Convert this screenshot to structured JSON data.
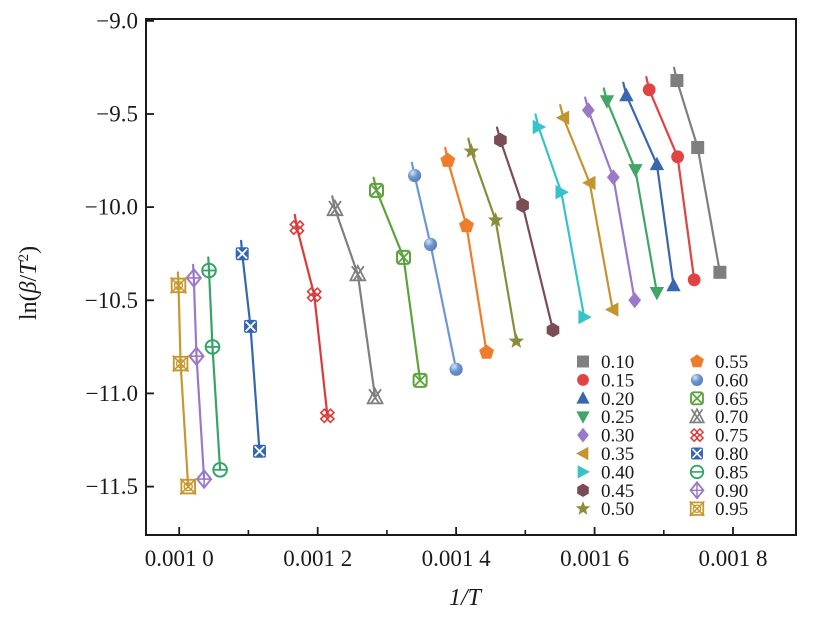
{
  "chart_data": {
    "type": "scatter",
    "title": "",
    "xlabel": "1/T",
    "ylabel": "ln(β/T²)",
    "xlim": [
      0.000952,
      0.001891
    ],
    "ylim": [
      -11.76,
      -8.99
    ],
    "grid": false,
    "legend_position": "lower right",
    "legend_columns": 2,
    "x_ticks": {
      "major": [
        0.001,
        0.0012,
        0.0014,
        0.0016,
        0.0018
      ],
      "minor": [
        0.0011,
        0.0013,
        0.0015,
        0.0017
      ],
      "labels": [
        "0.001 0",
        "0.001 2",
        "0.001 4",
        "0.001 6",
        "0.001 8"
      ]
    },
    "y_ticks": {
      "major": [
        -9.0,
        -9.5,
        -10.0,
        -10.5,
        -11.0,
        -11.5
      ],
      "labels": [
        "−9.0",
        "−9.5",
        "−10.0",
        "−10.5",
        "−11.0",
        "−11.5"
      ]
    },
    "series": [
      {
        "label": "0.10",
        "marker": "square",
        "color": "#7f7f7f",
        "points": [
          [
            0.001719,
            -9.32
          ],
          [
            0.001749,
            -9.68
          ],
          [
            0.001781,
            -10.35
          ]
        ]
      },
      {
        "label": "0.15",
        "marker": "circle",
        "color": "#df4343",
        "points": [
          [
            0.001679,
            -9.37
          ],
          [
            0.00172,
            -9.73
          ],
          [
            0.001744,
            -10.39
          ]
        ]
      },
      {
        "label": "0.20",
        "marker": "triangle-up",
        "color": "#3a66b0",
        "points": [
          [
            0.001646,
            -9.4
          ],
          [
            0.00169,
            -9.77
          ],
          [
            0.001714,
            -10.42
          ]
        ]
      },
      {
        "label": "0.25",
        "marker": "triangle-down",
        "color": "#41a566",
        "points": [
          [
            0.001618,
            -9.43
          ],
          [
            0.001659,
            -9.8
          ],
          [
            0.00169,
            -10.46
          ]
        ]
      },
      {
        "label": "0.30",
        "marker": "diamond",
        "color": "#9a79c8",
        "points": [
          [
            0.001591,
            -9.48
          ],
          [
            0.001627,
            -9.84
          ],
          [
            0.001658,
            -10.5
          ]
        ]
      },
      {
        "label": "0.35",
        "marker": "triangle-left",
        "color": "#c2952f",
        "points": [
          [
            0.001555,
            -9.52
          ],
          [
            0.001593,
            -9.87
          ],
          [
            0.001626,
            -10.55
          ]
        ]
      },
      {
        "label": "0.40",
        "marker": "triangle-right",
        "color": "#36c3c9",
        "points": [
          [
            0.001519,
            -9.57
          ],
          [
            0.001552,
            -9.92
          ],
          [
            0.001585,
            -10.59
          ]
        ]
      },
      {
        "label": "0.45",
        "marker": "hexagon",
        "color": "#7b4c56",
        "points": [
          [
            0.001464,
            -9.64
          ],
          [
            0.001496,
            -9.99
          ],
          [
            0.00154,
            -10.66
          ]
        ]
      },
      {
        "label": "0.50",
        "marker": "star",
        "color": "#8b8c3c",
        "points": [
          [
            0.001422,
            -9.7
          ],
          [
            0.001457,
            -10.07
          ],
          [
            0.001487,
            -10.72
          ]
        ]
      },
      {
        "label": "0.55",
        "marker": "pentagon",
        "color": "#ee7c2b",
        "points": [
          [
            0.001388,
            -9.75
          ],
          [
            0.001415,
            -10.1
          ],
          [
            0.001444,
            -10.78
          ]
        ]
      },
      {
        "label": "0.60",
        "marker": "ball",
        "color": "#6d97d1",
        "points": [
          [
            0.00134,
            -9.83
          ],
          [
            0.001363,
            -10.2
          ],
          [
            0.0014,
            -10.87
          ]
        ]
      },
      {
        "label": "0.65",
        "marker": "square-x-open",
        "color": "#5ba33c",
        "points": [
          [
            0.001285,
            -9.91
          ],
          [
            0.001324,
            -10.27
          ],
          [
            0.001348,
            -10.93
          ]
        ]
      },
      {
        "label": "0.70",
        "marker": "triangle-x-open",
        "color": "#7f7f7f",
        "points": [
          [
            0.001225,
            -10.01
          ],
          [
            0.001258,
            -10.36
          ],
          [
            0.001283,
            -11.02
          ]
        ]
      },
      {
        "label": "0.75",
        "marker": "x-cross",
        "color": "#dc3a3a",
        "points": [
          [
            0.00117,
            -10.11
          ],
          [
            0.001195,
            -10.47
          ],
          [
            0.001214,
            -11.12
          ]
        ]
      },
      {
        "label": "0.80",
        "marker": "square-x-filled",
        "color": "#3566b4",
        "points": [
          [
            0.001091,
            -10.25
          ],
          [
            0.001103,
            -10.64
          ],
          [
            0.001116,
            -11.31
          ]
        ]
      },
      {
        "label": "0.85",
        "marker": "circle-minus-open",
        "color": "#35a566",
        "points": [
          [
            0.001043,
            -10.34
          ],
          [
            0.001048,
            -10.75
          ],
          [
            0.001059,
            -11.41
          ]
        ]
      },
      {
        "label": "0.90",
        "marker": "diamond-plus-open",
        "color": "#9a79c8",
        "points": [
          [
            0.001021,
            -10.38
          ],
          [
            0.001025,
            -10.8
          ],
          [
            0.001036,
            -11.46
          ]
        ]
      },
      {
        "label": "0.95",
        "marker": "square-x-circle-open",
        "color": "#c6982e",
        "points": [
          [
            0.000999,
            -10.42
          ],
          [
            0.001002,
            -10.84
          ],
          [
            0.001013,
            -11.5
          ]
        ]
      }
    ],
    "frame_color": "#1a1a1a",
    "ball_highlight": "#d6e4f5"
  }
}
